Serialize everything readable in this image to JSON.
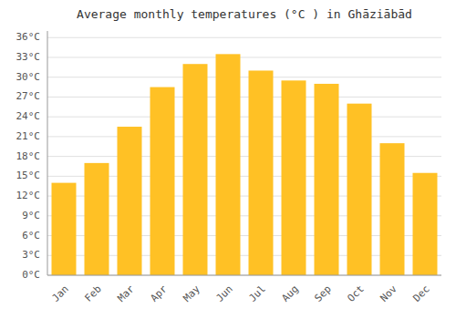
{
  "chart_data": {
    "type": "bar",
    "title": "Average monthly temperatures (°C ) in Ghāziābād",
    "categories": [
      "Jan",
      "Feb",
      "Mar",
      "Apr",
      "May",
      "Jun",
      "Jul",
      "Aug",
      "Sep",
      "Oct",
      "Nov",
      "Dec"
    ],
    "values": [
      14.0,
      17.0,
      22.5,
      28.5,
      32.0,
      33.5,
      31.0,
      29.5,
      29.0,
      26.0,
      20.0,
      15.5
    ],
    "color": "#FFC125",
    "ylim": [
      0,
      37
    ],
    "yticks": [
      {
        "value": 0,
        "label": "0°C"
      },
      {
        "value": 3,
        "label": "3°C"
      },
      {
        "value": 6,
        "label": "6°C"
      },
      {
        "value": 9,
        "label": "9°C"
      },
      {
        "value": 12,
        "label": "12°C"
      },
      {
        "value": 15,
        "label": "15°C"
      },
      {
        "value": 18,
        "label": "18°C"
      },
      {
        "value": 21,
        "label": "21°C"
      },
      {
        "value": 24,
        "label": "24°C"
      },
      {
        "value": 27,
        "label": "27°C"
      },
      {
        "value": 30,
        "label": "30°C"
      },
      {
        "value": 33,
        "label": "33°C"
      },
      {
        "value": 36,
        "label": "36°C"
      }
    ],
    "grid": true
  }
}
